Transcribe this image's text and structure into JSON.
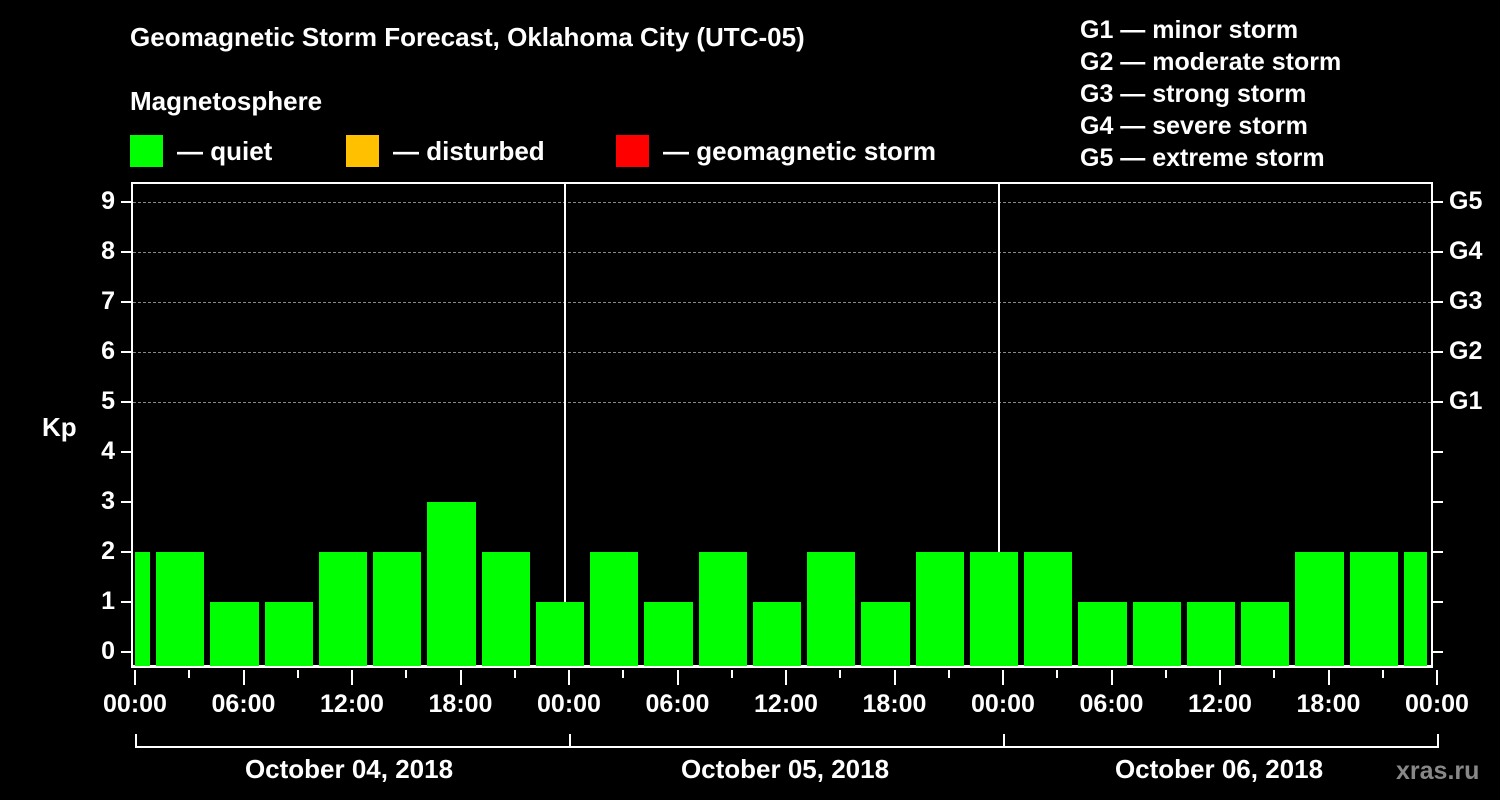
{
  "header": {
    "title": "Geomagnetic Storm Forecast, Oklahoma City (UTC-05)",
    "subtitle": "Magnetosphere"
  },
  "legend": [
    {
      "label": "— quiet",
      "color": "#00ff00"
    },
    {
      "label": "— disturbed",
      "color": "#ffc000"
    },
    {
      "label": "— geomagnetic storm",
      "color": "#ff0000"
    }
  ],
  "storm_levels": [
    "G1 — minor storm",
    "G2 — moderate storm",
    "G3 — strong storm",
    "G4 — severe storm",
    "G5 — extreme storm"
  ],
  "axis": {
    "ylabel": "Kp",
    "yticks": [
      "0",
      "1",
      "2",
      "3",
      "4",
      "5",
      "6",
      "7",
      "8",
      "9"
    ],
    "right_ticks": {
      "5": "G1",
      "6": "G2",
      "7": "G3",
      "8": "G4",
      "9": "G5"
    },
    "xticks": [
      "00:00",
      "06:00",
      "12:00",
      "18:00",
      "00:00",
      "06:00",
      "12:00",
      "18:00",
      "00:00",
      "06:00",
      "12:00",
      "18:00",
      "00:00"
    ],
    "dates": [
      "October 04, 2018",
      "October 05, 2018",
      "October 06, 2018"
    ]
  },
  "watermark": "xras.ru",
  "chart_data": {
    "type": "bar",
    "title": "Geomagnetic Storm Forecast, Oklahoma City (UTC-05)",
    "xlabel": "",
    "ylabel": "Kp",
    "ylim": [
      0,
      9
    ],
    "grid": "dashed horizontal at Kp 5-9",
    "legend": [
      "quiet",
      "disturbed",
      "geomagnetic storm"
    ],
    "bar_interval_hours": 3,
    "categories": [
      "Oct 04 ~00:00",
      "Oct 04 ~02:00",
      "Oct 04 ~05:00",
      "Oct 04 ~08:00",
      "Oct 04 ~11:00",
      "Oct 04 ~14:00",
      "Oct 04 ~17:00",
      "Oct 04 ~20:00",
      "Oct 04 ~23:00",
      "Oct 05 ~02:00",
      "Oct 05 ~05:00",
      "Oct 05 ~08:00",
      "Oct 05 ~11:00",
      "Oct 05 ~14:00",
      "Oct 05 ~17:00",
      "Oct 05 ~20:00",
      "Oct 05 ~23:00",
      "Oct 06 ~02:00",
      "Oct 06 ~05:00",
      "Oct 06 ~08:00",
      "Oct 06 ~11:00",
      "Oct 06 ~14:00",
      "Oct 06 ~17:00",
      "Oct 06 ~20:00",
      "Oct 06 ~23:00"
    ],
    "values": [
      2,
      2,
      1,
      1,
      2,
      2,
      3,
      2,
      1,
      2,
      1,
      2,
      1,
      2,
      1,
      2,
      2,
      2,
      1,
      1,
      1,
      1,
      2,
      2,
      2
    ],
    "status": "quiet",
    "bar_color": "#00ff00"
  }
}
